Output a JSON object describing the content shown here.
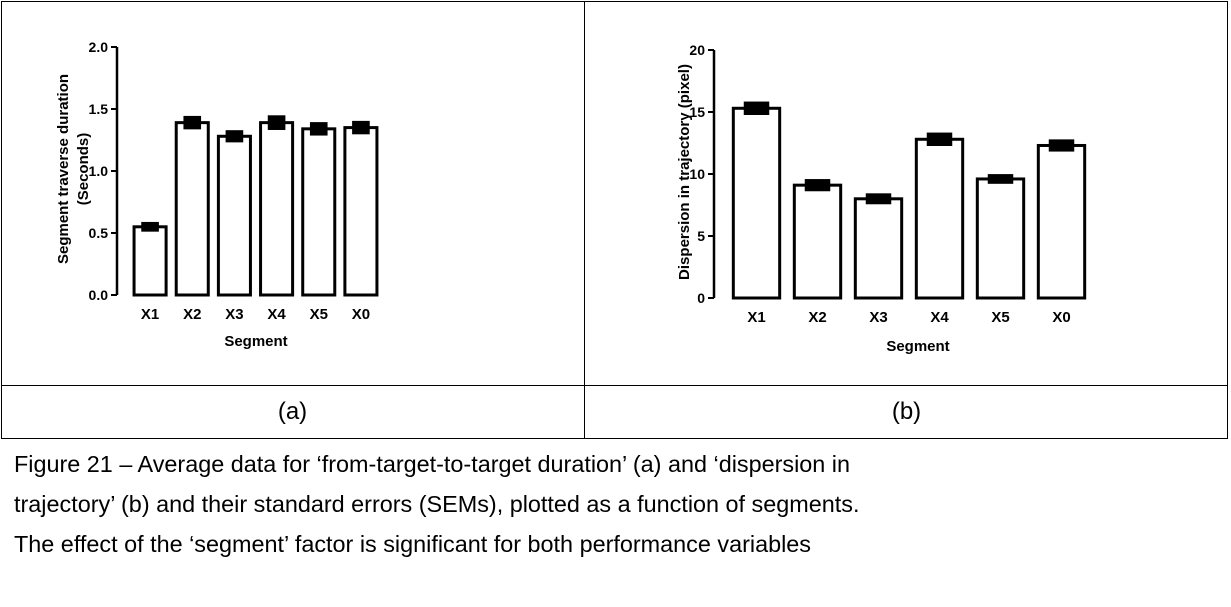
{
  "panel_labels": {
    "a": "(a)",
    "b": "(b)"
  },
  "caption": {
    "line1": "Figure 21 – Average data for ‘from-target-to-target duration’ (a) and ‘dispersion in",
    "line2": "trajectory’ (b) and their standard errors (SEMs), plotted as a function of segments.",
    "line3": "The effect of the ‘segment’ factor is significant for both performance variables"
  },
  "chart_data": [
    {
      "type": "bar",
      "categories": [
        "X1",
        "X2",
        "X3",
        "X4",
        "X5",
        "X0"
      ],
      "values": [
        0.55,
        1.39,
        1.28,
        1.39,
        1.34,
        1.35
      ],
      "errors": [
        0.015,
        0.03,
        0.025,
        0.035,
        0.03,
        0.03
      ],
      "ylim": [
        0,
        2.0
      ],
      "yticks": [
        "0.0",
        "0.5",
        "1.0",
        "1.5",
        "2.0"
      ],
      "xlabel": "Segment",
      "ylabel_line1": "Segment traverse duration",
      "ylabel_line2": "(Seconds)",
      "grid": false,
      "bar_fill": "#ffffff",
      "bar_stroke": "#000000"
    },
    {
      "type": "bar",
      "categories": [
        "X1",
        "X2",
        "X3",
        "X4",
        "X5",
        "X0"
      ],
      "values": [
        15.3,
        9.1,
        8.0,
        12.8,
        9.6,
        12.3
      ],
      "errors": [
        0.3,
        0.25,
        0.2,
        0.3,
        0.15,
        0.25
      ],
      "ylim": [
        0,
        20
      ],
      "yticks": [
        "0",
        "5",
        "10",
        "15",
        "20"
      ],
      "xlabel": "Segment",
      "ylabel_line1": "Dispersion in trajectory (pixel)",
      "grid": false,
      "bar_fill": "#ffffff",
      "bar_stroke": "#000000"
    }
  ]
}
